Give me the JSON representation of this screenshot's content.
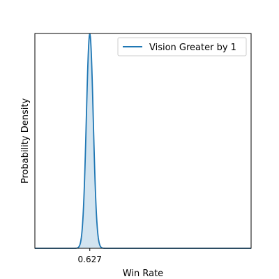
{
  "chart_data": {
    "type": "area",
    "title": "",
    "xlabel": "Win Rate",
    "ylabel": "Probability Density",
    "xlim": [
      0.5,
      1.0
    ],
    "ylim": [
      0,
      50
    ],
    "x_ticks": [
      0.627
    ],
    "x_tick_labels": [
      "0.627"
    ],
    "y_ticks_shown": false,
    "grid": false,
    "legend": {
      "location": "top-right"
    },
    "series": [
      {
        "name": "Vision Greater by 1",
        "distribution": "normal",
        "mean": 0.627,
        "std": 0.008,
        "peak_density": 49.9,
        "color": "#1f77b4",
        "fill_color": "#1f77b4",
        "fill_opacity": 0.2
      }
    ]
  }
}
